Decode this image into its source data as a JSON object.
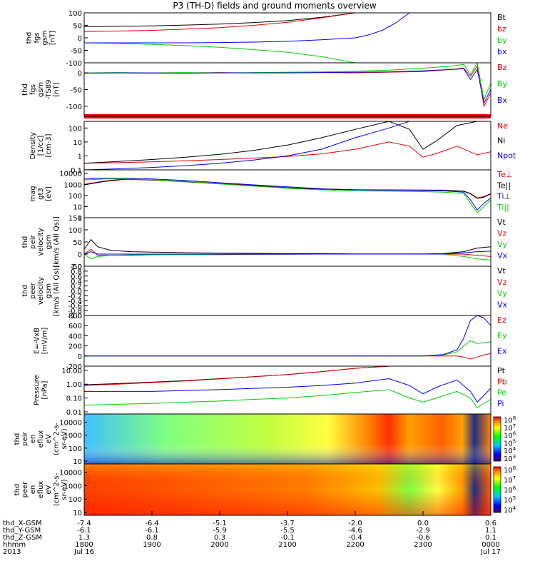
{
  "title": "P3 (TH-D) fields and ground moments overview",
  "colors": {
    "black": "#000000",
    "red": "#e00000",
    "green": "#00cc00",
    "blue": "#0000ee"
  },
  "x_axis": {
    "rows": [
      {
        "label": "thd_X-GSM",
        "values": [
          "-7.4",
          "-6.4",
          "-5.1",
          "-3.7",
          "-2.0",
          "0.0",
          "0.6"
        ]
      },
      {
        "label": "thd_Y-GSM",
        "values": [
          "-6.1",
          "-6.1",
          "-5.9",
          "-5.5",
          "-4.6",
          "-2.9",
          "1.1"
        ]
      },
      {
        "label": "thd_Z-GSM",
        "values": [
          "1.3",
          "0.8",
          "0.3",
          "-0.1",
          "-0.4",
          "-0.6",
          "0.1"
        ]
      },
      {
        "label": "hhmm",
        "values": [
          "1800",
          "1900",
          "2000",
          "2100",
          "2200",
          "2300",
          "0000"
        ]
      },
      {
        "label": "2013",
        "values": [
          "Jul 16",
          "",
          "",
          "",
          "",
          "",
          "Jul 17"
        ]
      }
    ]
  },
  "chart_data": [
    {
      "type": "line",
      "ylabel": [
        "thd",
        "fgs",
        "gsm",
        "[nT]"
      ],
      "ylim": [
        -100,
        100
      ],
      "yticks": [
        "100",
        "50",
        "0",
        "-50",
        "-100"
      ],
      "x_hours": [
        18,
        18.5,
        19,
        19.5,
        20,
        20.5,
        21,
        21.5,
        22,
        22.2,
        22.4,
        22.6,
        22.8,
        23,
        23.2,
        23.4,
        23.6,
        23.8,
        24
      ],
      "series": [
        {
          "name": "Bt",
          "color": "#000000",
          "values": [
            45,
            46,
            48,
            51,
            55,
            61,
            69,
            82,
            100,
            null,
            null,
            null,
            null,
            null,
            null,
            null,
            null,
            null,
            null
          ]
        },
        {
          "name": "bz",
          "color": "#e00000",
          "values": [
            25,
            27,
            30,
            35,
            41,
            50,
            62,
            80,
            100,
            null,
            null,
            null,
            null,
            null,
            null,
            null,
            null,
            null,
            null
          ]
        },
        {
          "name": "by",
          "color": "#00cc00",
          "values": [
            -20,
            -22,
            -26,
            -31,
            -38,
            -47,
            -58,
            -75,
            -100,
            null,
            null,
            null,
            null,
            null,
            null,
            null,
            null,
            null,
            null
          ]
        },
        {
          "name": "bx",
          "color": "#0000ee",
          "values": [
            -20,
            -20,
            -20,
            -20,
            -19,
            -17,
            -14,
            -8,
            0,
            12,
            30,
            60,
            100,
            null,
            null,
            null,
            null,
            null,
            null
          ]
        }
      ]
    },
    {
      "type": "line",
      "ylabel": [
        "thd",
        "fgs",
        "gsm",
        "-TS89",
        "[nT]"
      ],
      "ylim": [
        -130,
        30
      ],
      "yticks": [
        "0",
        "-50",
        "-100"
      ],
      "x_hours": [
        18,
        18.5,
        19,
        19.5,
        20,
        20.5,
        21,
        21.5,
        22,
        22.5,
        23,
        23.4,
        23.6,
        23.7,
        23.8,
        23.9,
        24
      ],
      "series": [
        {
          "name": "Bz",
          "color": "#e00000",
          "values": [
            0,
            0,
            -1,
            0,
            1,
            0,
            0,
            1,
            0,
            2,
            4,
            10,
            14,
            -10,
            20,
            -100,
            -60
          ]
        },
        {
          "name": "By",
          "color": "#00cc00",
          "values": [
            0,
            1,
            0,
            1,
            0,
            1,
            2,
            3,
            5,
            8,
            14,
            20,
            25,
            -5,
            30,
            -80,
            -30
          ]
        },
        {
          "name": "Bx",
          "color": "#0000ee",
          "values": [
            -1,
            0,
            0,
            -1,
            0,
            0,
            0,
            1,
            2,
            3,
            6,
            10,
            12,
            -20,
            10,
            -90,
            -50
          ]
        }
      ]
    },
    {
      "type": "line",
      "ylabel": [
        "Density",
        "[1/cc]",
        "[cm-3]"
      ],
      "ylim": [
        0.1,
        300
      ],
      "scale": "log",
      "yticks": [
        "100",
        "10",
        "1",
        "0.1"
      ],
      "x_hours": [
        18,
        18.5,
        19,
        19.5,
        20,
        20.5,
        21,
        21.5,
        22,
        22.5,
        22.8,
        23,
        23.2,
        23.5,
        23.8,
        24
      ],
      "series": [
        {
          "name": "Ne",
          "color": "#e00000",
          "values": [
            0.3,
            0.33,
            0.38,
            0.45,
            0.55,
            0.7,
            0.9,
            1.4,
            3,
            10,
            5,
            0.8,
            1.5,
            5,
            1.2,
            2
          ]
        },
        {
          "name": "Ni",
          "color": "#000000",
          "values": [
            0.3,
            0.4,
            0.55,
            0.8,
            1.3,
            2.5,
            6,
            20,
            80,
            300,
            80,
            3,
            12,
            150,
            300,
            300
          ]
        },
        {
          "name": "Npot",
          "color": "#0000ee",
          "values": [
            0.1,
            0.12,
            0.15,
            0.2,
            0.3,
            0.5,
            1,
            3,
            20,
            100,
            300,
            300,
            300,
            300,
            300,
            300
          ]
        }
      ]
    },
    {
      "type": "line",
      "ylabel": [
        "mag",
        "gt3",
        "[eV]"
      ],
      "ylim": [
        1,
        20000
      ],
      "scale": "log",
      "yticks": [
        "10000",
        "1000",
        "100",
        "10",
        "1"
      ],
      "x_hours": [
        18,
        18.3,
        18.6,
        19,
        19.5,
        20,
        20.5,
        21,
        21.5,
        22,
        22.5,
        23,
        23.3,
        23.6,
        23.7,
        23.8,
        23.9,
        24
      ],
      "series": [
        {
          "name": "Te⊥",
          "color": "#e00000",
          "values": [
            1000,
            2000,
            3000,
            2500,
            1800,
            1200,
            800,
            500,
            380,
            330,
            320,
            310,
            300,
            250,
            150,
            60,
            80,
            150
          ]
        },
        {
          "name": "Te||",
          "color": "#000000",
          "values": [
            900,
            1800,
            2800,
            2400,
            1700,
            1100,
            750,
            480,
            370,
            320,
            310,
            300,
            290,
            240,
            140,
            55,
            70,
            140
          ]
        },
        {
          "name": "Ti⊥",
          "color": "#0000ee",
          "values": [
            3000,
            3500,
            3500,
            3000,
            2200,
            1400,
            900,
            600,
            400,
            320,
            300,
            280,
            260,
            200,
            40,
            5,
            20,
            60
          ]
        },
        {
          "name": "Ti||",
          "color": "#00cc00",
          "values": [
            2500,
            3000,
            3000,
            2600,
            1800,
            1100,
            700,
            450,
            320,
            260,
            240,
            220,
            200,
            150,
            20,
            3,
            10,
            40
          ]
        }
      ]
    },
    {
      "type": "line",
      "ylabel": [
        "thd",
        "peir",
        "velocity",
        "gsm",
        "[km/s (All Qs)]"
      ],
      "ylim": [
        -50,
        150
      ],
      "yticks": [
        "150",
        "100",
        "50",
        "0",
        "-50"
      ],
      "x_hours": [
        18,
        18.1,
        18.2,
        18.4,
        18.7,
        19,
        19.5,
        20,
        20.5,
        21,
        21.5,
        22,
        22.5,
        23,
        23.3,
        23.6,
        23.8,
        24
      ],
      "series": [
        {
          "name": "Vt",
          "color": "#000000",
          "values": [
            20,
            60,
            30,
            15,
            10,
            8,
            6,
            4,
            3,
            2,
            2,
            1,
            1,
            1,
            2,
            10,
            25,
            30
          ]
        },
        {
          "name": "Vz",
          "color": "#e00000",
          "values": [
            0,
            20,
            -5,
            -5,
            -5,
            -3,
            -2,
            -2,
            -1,
            -1,
            0,
            0,
            0,
            0,
            0,
            0,
            -5,
            -10
          ]
        },
        {
          "name": "Vy",
          "color": "#00cc00",
          "values": [
            0,
            -20,
            -10,
            -5,
            -3,
            -2,
            -2,
            -1,
            -1,
            0,
            0,
            0,
            0,
            0,
            0,
            -10,
            -20,
            -25
          ]
        },
        {
          "name": "Vx",
          "color": "#0000ee",
          "values": [
            0,
            10,
            0,
            0,
            0,
            0,
            0,
            0,
            0,
            0,
            0,
            0,
            0,
            0,
            0,
            5,
            10,
            12
          ]
        }
      ]
    },
    {
      "type": "line",
      "ylabel": [
        "thd",
        "peer",
        "velocity",
        "gsm",
        "[km/s (All Qs)]"
      ],
      "ylim": [
        -1,
        1
      ],
      "yticks": [
        "1.0",
        "0.8",
        "0.6",
        "0.4",
        "0.2",
        "0.0",
        "-0.2",
        "-0.4",
        "-0.6",
        "-0.8",
        "-1.0"
      ],
      "x_hours": [],
      "series": [
        {
          "name": "Vt",
          "color": "#000000",
          "values": []
        },
        {
          "name": "Vz",
          "color": "#e00000",
          "values": []
        },
        {
          "name": "Vy",
          "color": "#00cc00",
          "values": []
        },
        {
          "name": "Vx",
          "color": "#0000ee",
          "values": []
        }
      ]
    },
    {
      "type": "line",
      "ylabel": [
        "E=-VxB",
        "[mV/m]"
      ],
      "ylim": [
        -200,
        800
      ],
      "yticks": [
        "800",
        "600",
        "400",
        "200",
        "0",
        "-200"
      ],
      "x_hours": [
        18,
        19,
        20,
        21,
        22,
        23,
        23.3,
        23.5,
        23.6,
        23.7,
        23.8,
        23.9,
        24
      ],
      "series": [
        {
          "name": "Ez",
          "color": "#e00000",
          "values": [
            0,
            0,
            0,
            0,
            0,
            0,
            0,
            0,
            -20,
            -60,
            -20,
            20,
            50
          ]
        },
        {
          "name": "Ey",
          "color": "#00cc00",
          "values": [
            0,
            0,
            0,
            0,
            0,
            0,
            20,
            80,
            200,
            300,
            250,
            260,
            280
          ]
        },
        {
          "name": "Ex",
          "color": "#0000ee",
          "values": [
            0,
            0,
            0,
            0,
            0,
            0,
            30,
            120,
            350,
            700,
            800,
            750,
            600
          ]
        }
      ]
    },
    {
      "type": "line",
      "ylabel": [
        "Pressure",
        "[nPa]"
      ],
      "ylim": [
        0.007,
        20
      ],
      "scale": "log",
      "yticks": [
        "10.00",
        "1.00",
        "0.10",
        "0.01"
      ],
      "x_hours": [
        18,
        18.5,
        19,
        19.5,
        20,
        20.5,
        21,
        21.5,
        22,
        22.5,
        22.8,
        23,
        23.2,
        23.5,
        23.7,
        23.8,
        24
      ],
      "series": [
        {
          "name": "Pt",
          "color": "#000000",
          "values": [
            0.9,
            1.1,
            1.4,
            1.8,
            2.5,
            3.5,
            5,
            8,
            14,
            20,
            20,
            20,
            20,
            20,
            20,
            20,
            20
          ]
        },
        {
          "name": "Pb",
          "color": "#e00000",
          "values": [
            0.8,
            1.0,
            1.3,
            1.7,
            2.4,
            3.4,
            5,
            8,
            14,
            20,
            20,
            20,
            20,
            20,
            20,
            20,
            20
          ]
        },
        {
          "name": "Pe",
          "color": "#00cc00",
          "values": [
            0.03,
            0.035,
            0.04,
            0.05,
            0.06,
            0.08,
            0.1,
            0.15,
            0.25,
            0.4,
            0.1,
            0.05,
            0.1,
            0.3,
            0.1,
            0.02,
            0.08
          ]
        },
        {
          "name": "Pi",
          "color": "#0000ee",
          "values": [
            0.3,
            0.3,
            0.3,
            0.35,
            0.4,
            0.5,
            0.6,
            0.8,
            1.2,
            2.5,
            0.8,
            0.2,
            0.6,
            2,
            0.3,
            0.05,
            0.5
          ]
        }
      ]
    },
    {
      "type": "heatmap",
      "ylabel": [
        "thd",
        "peir",
        "en",
        "eflux",
        "eV",
        "(cm^2-s-",
        "sr-eV)"
      ],
      "scale": "log",
      "yticks": [
        "10000",
        "1000",
        "100",
        "10"
      ],
      "colorbar": {
        "ticks": [
          "10^8",
          "10^7",
          "10^6",
          "10^5",
          "10^4",
          "10^3"
        ],
        "exponents": [
          "8",
          "7",
          "6",
          "5",
          "4",
          "3"
        ],
        "base": "10"
      }
    },
    {
      "type": "heatmap",
      "ylabel": [
        "thd",
        "peer",
        "en",
        "eflux",
        "eV",
        "(cm^2-s-",
        "sr-eV)"
      ],
      "scale": "log",
      "yticks": [
        "10000",
        "1000",
        "100",
        "10"
      ],
      "colorbar": {
        "ticks": [
          "10^8",
          "10^7",
          "10^6",
          "10^5",
          "10^4"
        ],
        "exponents": [
          "8",
          "7",
          "6",
          "5",
          "4"
        ],
        "base": "10"
      }
    }
  ]
}
